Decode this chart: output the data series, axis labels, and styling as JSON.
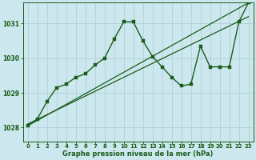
{
  "background_color": "#cce8ee",
  "grid_color": "#b0d0d8",
  "line_color": "#1a5c1a",
  "marker_color": "#1a5c1a",
  "xlabel": "Graphe pression niveau de la mer (hPa)",
  "xlim": [
    -0.5,
    23.5
  ],
  "ylim": [
    1027.6,
    1031.6
  ],
  "yticks": [
    1028,
    1029,
    1030,
    1031
  ],
  "xticks": [
    0,
    1,
    2,
    3,
    4,
    5,
    6,
    7,
    8,
    9,
    10,
    11,
    12,
    13,
    14,
    15,
    16,
    17,
    18,
    19,
    20,
    21,
    22,
    23
  ],
  "series": [
    {
      "x": [
        0,
        1,
        2,
        3,
        4,
        5,
        6,
        7,
        8,
        9,
        10,
        11,
        12,
        13,
        14,
        15,
        16,
        17,
        18,
        19,
        20,
        21,
        22,
        23
      ],
      "y": [
        1028.05,
        1028.25,
        1028.75,
        1029.15,
        1029.25,
        1029.45,
        1029.55,
        1029.8,
        1030.0,
        1030.55,
        1031.05,
        1031.05,
        1030.5,
        1030.05,
        1029.75,
        1029.45,
        1029.2,
        1029.25,
        1030.35,
        1029.75,
        1029.75,
        1029.75,
        1031.05,
        1031.6
      ],
      "with_markers": true,
      "linewidth": 1.0,
      "markersize": 2.5
    },
    {
      "x": [
        0,
        23
      ],
      "y": [
        1028.05,
        1031.6
      ],
      "with_markers": false,
      "linewidth": 0.9
    },
    {
      "x": [
        0,
        23
      ],
      "y": [
        1028.1,
        1031.2
      ],
      "with_markers": false,
      "linewidth": 0.9
    }
  ]
}
